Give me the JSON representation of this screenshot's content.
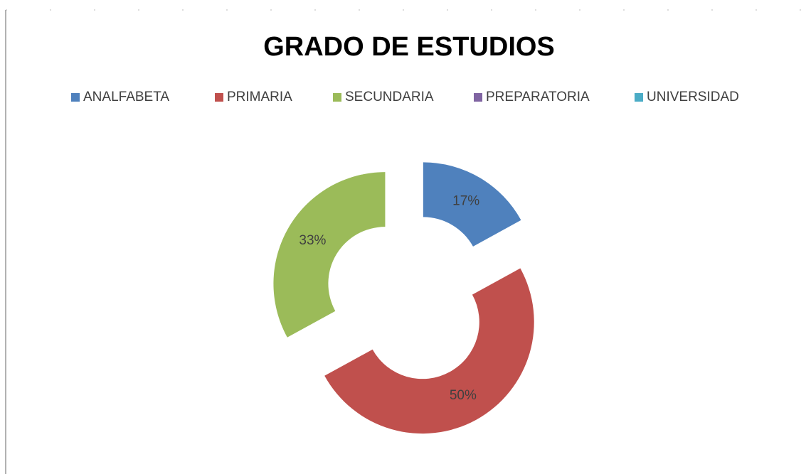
{
  "chart_data": {
    "type": "donut",
    "title": "GRADO DE ESTUDIOS",
    "categories": [
      "ANALFABETA",
      "PRIMARIA",
      "SECUNDARIA",
      "PREPARATORIA",
      "UNIVERSIDAD"
    ],
    "values": [
      17,
      50,
      33,
      0,
      0
    ],
    "value_labels": [
      "17%",
      "50%",
      "33%",
      null,
      null
    ],
    "colors": [
      "#4f81bd",
      "#c0504d",
      "#9bbb59",
      "#8064a2",
      "#4bacc6"
    ],
    "legend": "top",
    "exploded": true
  }
}
